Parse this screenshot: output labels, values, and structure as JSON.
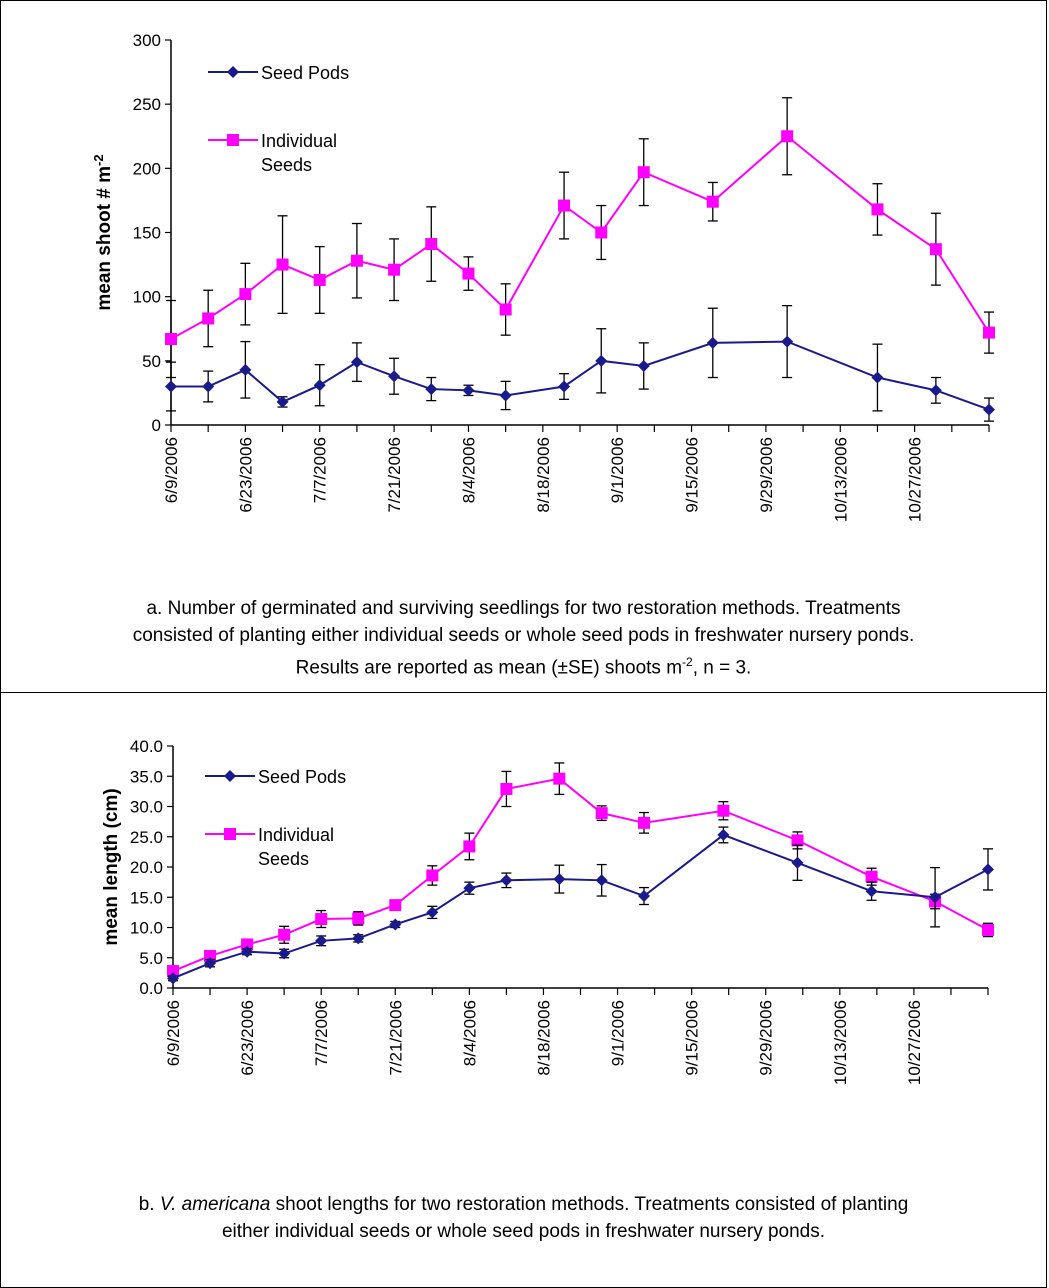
{
  "colors": {
    "seed_pods": "#1a1a8c",
    "individual_seeds": "#ff00ff",
    "error_bar": "#000000",
    "axis": "#000000"
  },
  "caption_a": {
    "line1": "a. Number of germinated and surviving seedlings for two restoration methods. Treatments",
    "line2": "consisted of planting either individual seeds or whole seed pods in freshwater nursery ponds.",
    "line3_prefix": "Results are reported as mean (±SE) shoots m",
    "line3_sup": "-2",
    "line3_suffix": ", n = 3."
  },
  "caption_b": {
    "line1_prefix": "b. ",
    "line1_italic": "V. americana",
    "line1_suffix": " shoot lengths for two restoration methods. Treatments consisted of planting",
    "line2": "either individual seeds or whole seed pods in freshwater nursery ponds."
  },
  "chart_data": [
    {
      "type": "line",
      "ylabel": "mean shoot # m",
      "ylabel_sup": "-2",
      "ylim": [
        0,
        300
      ],
      "yticks": [
        0,
        50,
        100,
        150,
        200,
        250,
        300
      ],
      "xlim": [
        "6/9/2006",
        "11/10/2006"
      ],
      "xticks": [
        "6/9/2006",
        "6/23/2006",
        "7/7/2006",
        "7/21/2006",
        "8/4/2006",
        "8/18/2006",
        "9/1/2006",
        "9/15/2006",
        "9/29/2006",
        "10/13/2006",
        "10/27/2006"
      ],
      "legend_position": "top-left",
      "grid": false,
      "x": [
        "6/9/2006",
        "6/16/2006",
        "6/23/2006",
        "6/30/2006",
        "7/7/2006",
        "7/14/2006",
        "7/21/2006",
        "7/28/2006",
        "8/4/2006",
        "8/11/2006",
        "8/22/2006",
        "8/29/2006",
        "9/6/2006",
        "9/19/2006",
        "10/3/2006",
        "10/20/2006",
        "10/31/2006",
        "11/10/2006"
      ],
      "series": [
        {
          "name": "Seed Pods",
          "marker": "diamond",
          "values": [
            30,
            30,
            43,
            18,
            31,
            49,
            38,
            28,
            27,
            23,
            30,
            50,
            46,
            null,
            64,
            null,
            null,
            null
          ],
          "errors": [
            19,
            12,
            22,
            4,
            16,
            15,
            14,
            9,
            4,
            11,
            10,
            25,
            18,
            null,
            27,
            null,
            null,
            null
          ]
        },
        {
          "name": "Individual Seeds",
          "marker": "square",
          "values": [
            67,
            83,
            102,
            125,
            113,
            128,
            121,
            141,
            118,
            90,
            171,
            150,
            197,
            174,
            225,
            168,
            137,
            72
          ],
          "errors": [
            30,
            22,
            24,
            38,
            26,
            29,
            24,
            29,
            13,
            20,
            26,
            21,
            26,
            15,
            30,
            20,
            28,
            16
          ]
        }
      ],
      "extra_points": {
        "seed_pods_x": [
          "9/19/2006",
          "10/3/2006",
          "10/20/2006",
          "10/31/2006",
          "11/10/2006"
        ],
        "seed_pods_values": [
          64,
          65,
          37,
          27,
          12
        ],
        "seed_pods_errors": [
          27,
          28,
          26,
          10,
          9
        ]
      }
    },
    {
      "type": "line",
      "ylabel": "mean length (cm)",
      "ylim": [
        0,
        40
      ],
      "yticks": [
        "0.0",
        "5.0",
        "10.0",
        "15.0",
        "20.0",
        "25.0",
        "30.0",
        "35.0",
        "40.0"
      ],
      "xlim": [
        "6/9/2006",
        "11/10/2006"
      ],
      "xticks": [
        "6/9/2006",
        "6/23/2006",
        "7/7/2006",
        "7/21/2006",
        "8/4/2006",
        "8/18/2006",
        "9/1/2006",
        "9/15/2006",
        "9/29/2006",
        "10/13/2006",
        "10/27/2006"
      ],
      "legend_position": "top-left",
      "grid": false,
      "x": [
        "6/9/2006",
        "6/16/2006",
        "6/23/2006",
        "6/30/2006",
        "7/7/2006",
        "7/14/2006",
        "7/21/2006",
        "7/28/2006",
        "8/4/2006",
        "8/11/2006",
        "8/21/2006",
        "8/29/2006",
        "9/6/2006",
        "9/21/2006",
        "10/5/2006",
        "10/19/2006",
        "10/31/2006",
        "11/10/2006"
      ],
      "series": [
        {
          "name": "Seed Pods",
          "marker": "diamond",
          "values": [
            1.6,
            4.1,
            6.0,
            5.7,
            7.8,
            8.2,
            10.5,
            12.5,
            16.5,
            17.8,
            18.0,
            17.8,
            15.2,
            25.3,
            20.7,
            16.0,
            15.0,
            19.6
          ],
          "errors": [
            0.4,
            0.6,
            0.5,
            0.7,
            0.8,
            0.6,
            0.5,
            1.0,
            1.0,
            1.2,
            2.3,
            2.6,
            1.4,
            1.3,
            2.9,
            1.5,
            4.9,
            3.4
          ]
        },
        {
          "name": "Individual Seeds",
          "marker": "square",
          "values": [
            2.8,
            5.3,
            7.2,
            8.8,
            11.4,
            11.5,
            13.7,
            18.6,
            23.4,
            32.9,
            34.6,
            28.9,
            27.3,
            29.3,
            24.4,
            18.4,
            14.3,
            9.6
          ],
          "errors": [
            0.4,
            0.5,
            0.8,
            1.4,
            1.4,
            1.1,
            0.8,
            1.6,
            2.2,
            2.9,
            2.6,
            1.2,
            1.7,
            1.5,
            1.4,
            1.4,
            1.2,
            1.1
          ]
        }
      ]
    }
  ]
}
